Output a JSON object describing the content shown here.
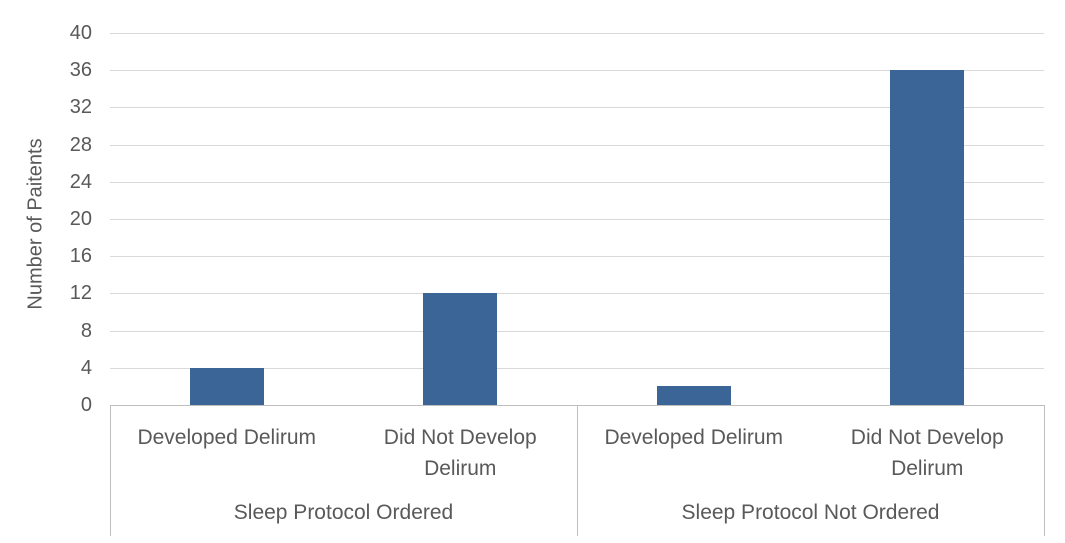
{
  "chart_data": {
    "type": "bar",
    "title": "",
    "xlabel": "",
    "ylabel": "Number of Paitents",
    "ylim": [
      0,
      40
    ],
    "ytick_step": 4,
    "yticks": [
      0,
      4,
      8,
      12,
      16,
      20,
      24,
      28,
      32,
      36,
      40
    ],
    "grid": true,
    "legend": "none",
    "groups": [
      {
        "label": "Sleep Protocol Ordered",
        "categories": [
          "Developed Delirum",
          "Did Not Develop Delirum"
        ],
        "values": [
          4,
          12
        ]
      },
      {
        "label": "Sleep Protocol Not Ordered",
        "categories": [
          "Developed Delirum",
          "Did Not Develop Delirum"
        ],
        "values": [
          2,
          36
        ]
      }
    ],
    "colors": {
      "bar": "#3A6596",
      "gridline": "#D9D9D9",
      "axis": "#BFBFBF",
      "text": "#595959"
    }
  }
}
